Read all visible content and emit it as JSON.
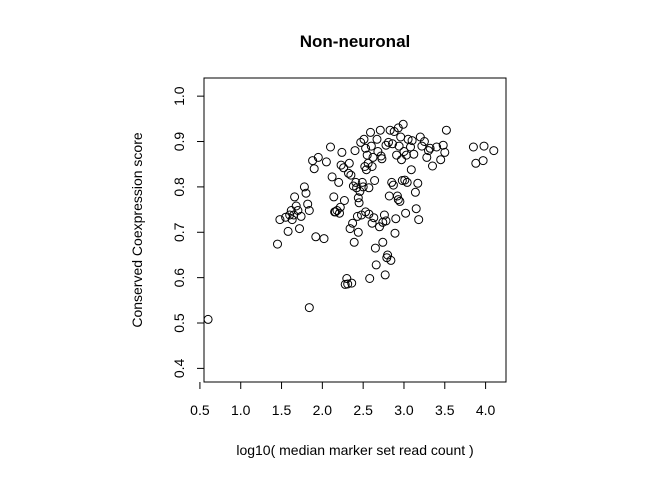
{
  "chart_data": {
    "type": "scatter",
    "title": "Non-neuronal",
    "xlabel": "log10( median marker set read count )",
    "ylabel": "Conserved Coexpression score",
    "xlim": [
      0.55,
      4.25
    ],
    "ylim": [
      0.37,
      1.04
    ],
    "xticks": [
      "0.5",
      "1.0",
      "1.5",
      "2.0",
      "2.5",
      "3.0",
      "3.5",
      "4.0"
    ],
    "yticks": [
      "0.4",
      "0.5",
      "0.6",
      "0.7",
      "0.8",
      "0.9",
      "1.0"
    ],
    "grid": false,
    "marker": "open-circle",
    "points": [
      [
        0.6,
        0.508
      ],
      [
        1.45,
        0.674
      ],
      [
        1.48,
        0.728
      ],
      [
        1.55,
        0.733
      ],
      [
        1.58,
        0.702
      ],
      [
        1.6,
        0.738
      ],
      [
        1.62,
        0.748
      ],
      [
        1.63,
        0.728
      ],
      [
        1.66,
        0.778
      ],
      [
        1.68,
        0.758
      ],
      [
        1.7,
        0.748
      ],
      [
        1.72,
        0.708
      ],
      [
        1.74,
        0.735
      ],
      [
        1.78,
        0.8
      ],
      [
        1.8,
        0.786
      ],
      [
        1.82,
        0.762
      ],
      [
        1.84,
        0.748
      ],
      [
        1.88,
        0.858
      ],
      [
        1.9,
        0.84
      ],
      [
        1.92,
        0.69
      ],
      [
        1.95,
        0.865
      ],
      [
        2.02,
        0.686
      ],
      [
        2.05,
        0.855
      ],
      [
        2.1,
        0.888
      ],
      [
        2.12,
        0.822
      ],
      [
        2.14,
        0.778
      ],
      [
        2.16,
        0.745
      ],
      [
        2.18,
        0.748
      ],
      [
        2.2,
        0.81
      ],
      [
        2.22,
        0.755
      ],
      [
        2.23,
        0.848
      ],
      [
        2.24,
        0.876
      ],
      [
        2.26,
        0.842
      ],
      [
        2.28,
        0.585
      ],
      [
        2.3,
        0.598
      ],
      [
        2.31,
        0.586
      ],
      [
        2.32,
        0.83
      ],
      [
        2.33,
        0.852
      ],
      [
        2.34,
        0.708
      ],
      [
        2.36,
        0.588
      ],
      [
        2.37,
        0.72
      ],
      [
        2.38,
        0.802
      ],
      [
        2.4,
        0.88
      ],
      [
        2.42,
        0.798
      ],
      [
        2.43,
        0.735
      ],
      [
        2.44,
        0.776
      ],
      [
        2.45,
        0.765
      ],
      [
        2.46,
        0.79
      ],
      [
        2.47,
        0.898
      ],
      [
        2.48,
        0.738
      ],
      [
        2.5,
        0.8
      ],
      [
        2.51,
        0.905
      ],
      [
        2.52,
        0.845
      ],
      [
        2.53,
        0.885
      ],
      [
        2.54,
        0.838
      ],
      [
        2.55,
        0.87
      ],
      [
        2.56,
        0.852
      ],
      [
        2.57,
        0.798
      ],
      [
        2.58,
        0.598
      ],
      [
        2.59,
        0.92
      ],
      [
        2.6,
        0.89
      ],
      [
        2.61,
        0.845
      ],
      [
        2.62,
        0.865
      ],
      [
        2.63,
        0.732
      ],
      [
        2.64,
        0.814
      ],
      [
        2.65,
        0.665
      ],
      [
        2.66,
        0.628
      ],
      [
        2.67,
        0.905
      ],
      [
        2.68,
        0.878
      ],
      [
        2.7,
        0.712
      ],
      [
        2.71,
        0.925
      ],
      [
        2.72,
        0.868
      ],
      [
        2.73,
        0.862
      ],
      [
        2.74,
        0.678
      ],
      [
        2.76,
        0.738
      ],
      [
        2.77,
        0.606
      ],
      [
        2.78,
        0.892
      ],
      [
        2.79,
        0.644
      ],
      [
        2.8,
        0.65
      ],
      [
        2.81,
        0.898
      ],
      [
        2.82,
        0.78
      ],
      [
        2.83,
        0.925
      ],
      [
        2.84,
        0.638
      ],
      [
        2.85,
        0.81
      ],
      [
        2.86,
        0.895
      ],
      [
        2.87,
        0.804
      ],
      [
        2.88,
        0.922
      ],
      [
        2.89,
        0.698
      ],
      [
        2.9,
        0.73
      ],
      [
        2.91,
        0.87
      ],
      [
        2.92,
        0.78
      ],
      [
        2.93,
        0.93
      ],
      [
        2.94,
        0.89
      ],
      [
        2.95,
        0.768
      ],
      [
        2.96,
        0.91
      ],
      [
        2.97,
        0.86
      ],
      [
        2.98,
        0.814
      ],
      [
        2.99,
        0.938
      ],
      [
        3.0,
        0.878
      ],
      [
        3.02,
        0.742
      ],
      [
        3.03,
        0.87
      ],
      [
        3.04,
        0.81
      ],
      [
        3.05,
        0.905
      ],
      [
        3.08,
        0.888
      ],
      [
        3.1,
        0.902
      ],
      [
        3.12,
        0.872
      ],
      [
        3.14,
        0.788
      ],
      [
        3.15,
        0.752
      ],
      [
        3.17,
        0.808
      ],
      [
        3.18,
        0.728
      ],
      [
        3.2,
        0.91
      ],
      [
        3.22,
        0.89
      ],
      [
        3.25,
        0.9
      ],
      [
        3.28,
        0.865
      ],
      [
        3.3,
        0.88
      ],
      [
        3.32,
        0.885
      ],
      [
        3.35,
        0.846
      ],
      [
        3.4,
        0.888
      ],
      [
        3.45,
        0.86
      ],
      [
        3.48,
        0.892
      ],
      [
        3.5,
        0.876
      ],
      [
        3.52,
        0.925
      ],
      [
        3.85,
        0.888
      ],
      [
        3.88,
        0.852
      ],
      [
        3.97,
        0.858
      ],
      [
        3.98,
        0.89
      ],
      [
        4.1,
        0.88
      ],
      [
        2.15,
        0.745
      ],
      [
        2.21,
        0.742
      ],
      [
        2.27,
        0.77
      ],
      [
        2.35,
        0.826
      ],
      [
        2.39,
        0.678
      ],
      [
        2.41,
        0.81
      ],
      [
        2.44,
        0.7
      ],
      [
        2.49,
        0.81
      ],
      [
        2.53,
        0.745
      ],
      [
        2.57,
        0.74
      ],
      [
        2.61,
        0.72
      ],
      [
        2.74,
        0.722
      ],
      [
        2.78,
        0.725
      ],
      [
        2.93,
        0.772
      ],
      [
        3.01,
        0.815
      ],
      [
        3.09,
        0.838
      ],
      [
        1.65,
        0.738
      ],
      [
        1.84,
        0.534
      ]
    ]
  }
}
